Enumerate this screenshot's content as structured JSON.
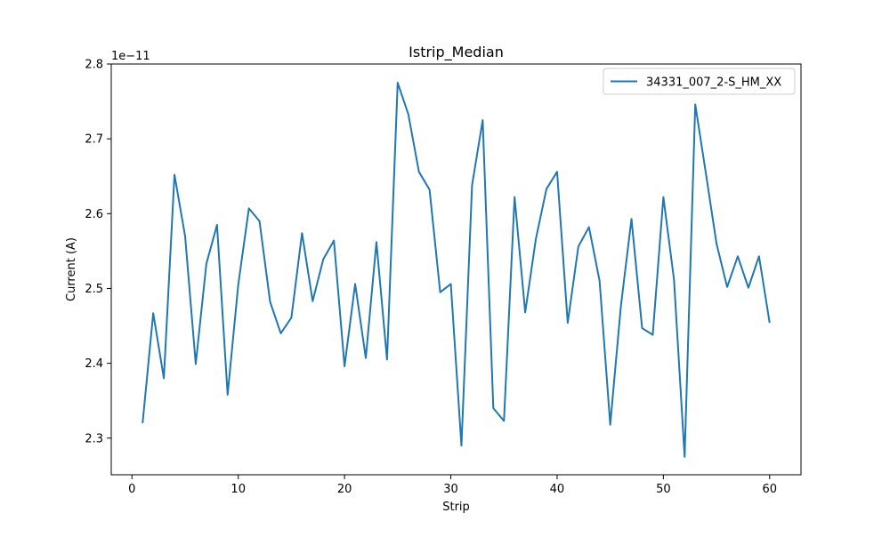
{
  "chart_data": {
    "type": "line",
    "title": "Istrip_Median",
    "xlabel": "Strip",
    "ylabel": "Current (A)",
    "y_offset_text": "1e−11",
    "xlim": [
      -1.95,
      62.95
    ],
    "ylim": [
      2.251,
      2.8
    ],
    "xticks": [
      0,
      10,
      20,
      30,
      40,
      50,
      60
    ],
    "xtick_labels": [
      "0",
      "10",
      "20",
      "30",
      "40",
      "50",
      "60"
    ],
    "yticks": [
      2.3,
      2.4,
      2.5,
      2.6,
      2.7,
      2.8
    ],
    "ytick_labels": [
      "2.3",
      "2.4",
      "2.5",
      "2.6",
      "2.7",
      "2.8"
    ],
    "grid": false,
    "legend_position": "top-right",
    "series": [
      {
        "name": "34331_007_2-S_HM_XX",
        "color": "#1f77b4",
        "x": [
          1,
          2,
          3,
          4,
          5,
          6,
          7,
          8,
          9,
          10,
          11,
          12,
          13,
          14,
          15,
          16,
          17,
          18,
          19,
          20,
          21,
          22,
          23,
          24,
          25,
          26,
          27,
          28,
          29,
          30,
          31,
          32,
          33,
          34,
          35,
          36,
          37,
          38,
          39,
          40,
          41,
          42,
          43,
          44,
          45,
          46,
          47,
          48,
          49,
          50,
          51,
          52,
          53,
          54,
          55,
          56,
          57,
          58,
          59,
          60
        ],
        "y": [
          2.32,
          2.467,
          2.38,
          2.652,
          2.57,
          2.399,
          2.533,
          2.585,
          2.358,
          2.505,
          2.607,
          2.59,
          2.482,
          2.44,
          2.461,
          2.574,
          2.483,
          2.539,
          2.564,
          2.396,
          2.506,
          2.407,
          2.562,
          2.405,
          2.775,
          2.733,
          2.656,
          2.632,
          2.495,
          2.506,
          2.29,
          2.638,
          2.725,
          2.34,
          2.323,
          2.622,
          2.468,
          2.566,
          2.633,
          2.656,
          2.454,
          2.556,
          2.582,
          2.51,
          2.318,
          2.476,
          2.593,
          2.447,
          2.438,
          2.622,
          2.512,
          2.275,
          2.746,
          2.654,
          2.56,
          2.502,
          2.543,
          2.501,
          2.543,
          2.454
        ]
      }
    ]
  }
}
